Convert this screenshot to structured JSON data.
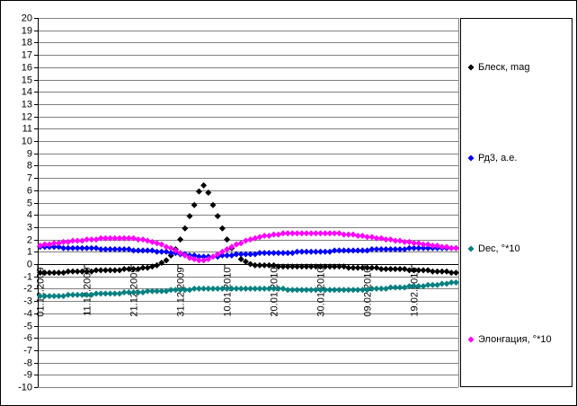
{
  "chart_data": {
    "type": "line",
    "categories": [
      "01.12.2009",
      null,
      null,
      null,
      null,
      null,
      null,
      null,
      null,
      null,
      "11.12.2009",
      null,
      null,
      null,
      null,
      null,
      null,
      null,
      null,
      null,
      "21.12.2009",
      null,
      null,
      null,
      null,
      null,
      null,
      null,
      null,
      null,
      "31.12.2009",
      null,
      null,
      null,
      null,
      null,
      null,
      null,
      null,
      null,
      "10.01.2010",
      null,
      null,
      null,
      null,
      null,
      null,
      null,
      null,
      null,
      "20.01.2010",
      null,
      null,
      null,
      null,
      null,
      null,
      null,
      null,
      null,
      "30.01.2010",
      null,
      null,
      null,
      null,
      null,
      null,
      null,
      null,
      null,
      "09.02.2010",
      null,
      null,
      null,
      null,
      null,
      null,
      null,
      null,
      null,
      "19.02.2010",
      null,
      null,
      null,
      null,
      null,
      null,
      null,
      null,
      null
    ],
    "series": [
      {
        "name": "Блеск, mag",
        "color": "#000000",
        "values": [
          -0.7,
          -0.7,
          -0.7,
          -0.7,
          -0.7,
          -0.7,
          -0.6,
          -0.6,
          -0.6,
          -0.6,
          -0.6,
          -0.6,
          -0.5,
          -0.5,
          -0.5,
          -0.5,
          -0.5,
          -0.5,
          -0.4,
          -0.4,
          -0.4,
          -0.4,
          -0.3,
          -0.3,
          -0.2,
          -0.1,
          0.1,
          0.3,
          0.7,
          1.2,
          2.0,
          2.9,
          3.9,
          4.8,
          5.9,
          6.4,
          5.8,
          4.8,
          3.9,
          2.9,
          2.0,
          1.3,
          0.8,
          0.4,
          0.2,
          0.0,
          -0.1,
          -0.1,
          -0.1,
          -0.1,
          -0.1,
          -0.2,
          -0.2,
          -0.2,
          -0.2,
          -0.2,
          -0.2,
          -0.2,
          -0.2,
          -0.2,
          -0.2,
          -0.2,
          -0.2,
          -0.2,
          -0.2,
          -0.2,
          -0.3,
          -0.3,
          -0.3,
          -0.3,
          -0.3,
          -0.3,
          -0.3,
          -0.4,
          -0.4,
          -0.4,
          -0.4,
          -0.4,
          -0.4,
          -0.5,
          -0.5,
          -0.5,
          -0.5,
          -0.5,
          -0.6,
          -0.6,
          -0.6,
          -0.6,
          -0.7,
          -0.7
        ]
      },
      {
        "name": "Рд3, а.е.",
        "color": "#0000ff",
        "values": [
          1.4,
          1.4,
          1.4,
          1.4,
          1.4,
          1.3,
          1.3,
          1.3,
          1.3,
          1.3,
          1.3,
          1.3,
          1.3,
          1.2,
          1.2,
          1.2,
          1.2,
          1.2,
          1.2,
          1.2,
          1.1,
          1.1,
          1.1,
          1.1,
          1.1,
          1.0,
          1.0,
          1.0,
          0.9,
          0.9,
          0.8,
          0.8,
          0.7,
          0.7,
          0.6,
          0.6,
          0.6,
          0.6,
          0.6,
          0.7,
          0.7,
          0.7,
          0.8,
          0.8,
          0.8,
          0.8,
          0.8,
          0.9,
          0.9,
          0.9,
          0.9,
          0.9,
          0.9,
          0.9,
          0.9,
          1.0,
          1.0,
          1.0,
          1.0,
          1.0,
          1.0,
          1.0,
          1.0,
          1.1,
          1.1,
          1.1,
          1.1,
          1.1,
          1.1,
          1.1,
          1.1,
          1.2,
          1.2,
          1.2,
          1.2,
          1.2,
          1.2,
          1.2,
          1.2,
          1.3,
          1.3,
          1.3,
          1.3,
          1.3,
          1.3,
          1.3,
          1.3,
          1.3,
          1.3,
          1.3
        ]
      },
      {
        "name": "Dec, °*10",
        "color": "#008080",
        "values": [
          -2.6,
          -2.6,
          -2.6,
          -2.6,
          -2.6,
          -2.6,
          -2.5,
          -2.5,
          -2.5,
          -2.5,
          -2.5,
          -2.5,
          -2.4,
          -2.4,
          -2.4,
          -2.4,
          -2.4,
          -2.4,
          -2.3,
          -2.3,
          -2.3,
          -2.3,
          -2.3,
          -2.2,
          -2.2,
          -2.2,
          -2.2,
          -2.2,
          -2.1,
          -2.1,
          -2.1,
          -2.1,
          -2.1,
          -2.0,
          -2.0,
          -2.0,
          -2.0,
          -2.0,
          -2.0,
          -2.0,
          -2.0,
          -2.0,
          -2.0,
          -2.0,
          -2.0,
          -2.0,
          -2.0,
          -2.0,
          -2.0,
          -2.0,
          -2.0,
          -2.0,
          -2.0,
          -2.1,
          -2.1,
          -2.1,
          -2.1,
          -2.1,
          -2.1,
          -2.1,
          -2.1,
          -2.1,
          -2.1,
          -2.1,
          -2.1,
          -2.1,
          -2.1,
          -2.1,
          -2.1,
          -2.1,
          -2.1,
          -2.0,
          -2.0,
          -2.0,
          -2.0,
          -1.9,
          -1.9,
          -1.9,
          -1.9,
          -1.8,
          -1.8,
          -1.8,
          -1.8,
          -1.7,
          -1.7,
          -1.7,
          -1.6,
          -1.6,
          -1.5,
          -1.5
        ]
      },
      {
        "name": "Элонгация, °*10",
        "color": "#ff00ff",
        "values": [
          1.5,
          1.6,
          1.6,
          1.7,
          1.7,
          1.8,
          1.8,
          1.9,
          1.9,
          1.9,
          2.0,
          2.0,
          2.0,
          2.1,
          2.1,
          2.1,
          2.1,
          2.1,
          2.1,
          2.1,
          2.1,
          2.0,
          2.0,
          1.9,
          1.8,
          1.7,
          1.6,
          1.4,
          1.3,
          1.1,
          0.9,
          0.7,
          0.5,
          0.4,
          0.3,
          0.3,
          0.4,
          0.6,
          0.8,
          1.0,
          1.2,
          1.4,
          1.6,
          1.7,
          1.9,
          2.0,
          2.1,
          2.2,
          2.3,
          2.3,
          2.4,
          2.4,
          2.5,
          2.5,
          2.5,
          2.5,
          2.5,
          2.5,
          2.5,
          2.5,
          2.5,
          2.5,
          2.5,
          2.5,
          2.5,
          2.4,
          2.4,
          2.4,
          2.3,
          2.3,
          2.2,
          2.2,
          2.1,
          2.1,
          2.0,
          2.0,
          1.9,
          1.9,
          1.8,
          1.8,
          1.7,
          1.7,
          1.6,
          1.6,
          1.5,
          1.5,
          1.4,
          1.4,
          1.3,
          1.3
        ]
      }
    ],
    "ylim": [
      -10,
      20
    ],
    "yticks": [
      -10,
      -9,
      -8,
      -7,
      -6,
      -5,
      -4,
      -3,
      -2,
      -1,
      0,
      1,
      2,
      3,
      4,
      5,
      6,
      7,
      8,
      9,
      10,
      11,
      12,
      13,
      14,
      15,
      16,
      17,
      18,
      19,
      20
    ],
    "grid": true,
    "legend": "right"
  }
}
